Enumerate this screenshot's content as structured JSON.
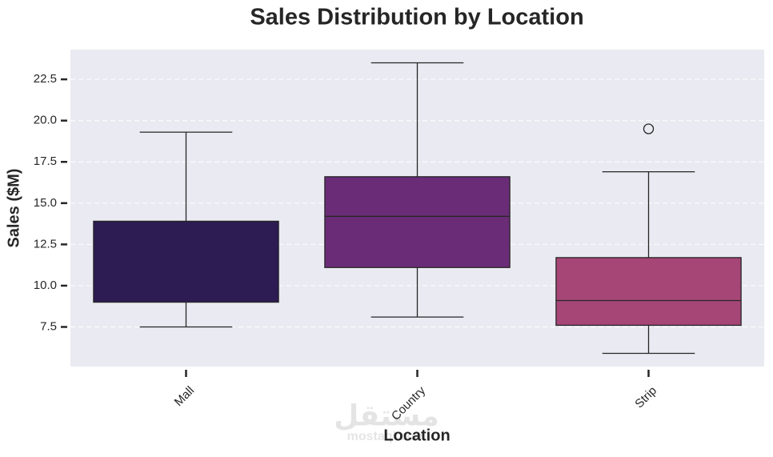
{
  "chart_data": {
    "type": "box",
    "title": "Sales Distribution by Location",
    "x_label": "Location",
    "y_label": "Sales ($M)",
    "categories": [
      "Mall",
      "Country",
      "Strip"
    ],
    "colors": [
      "#2d1b54",
      "#6a2c77",
      "#a64677"
    ],
    "boxes": [
      {
        "whislo": 7.5,
        "q1": 9.0,
        "med": 13.9,
        "q3": 13.9,
        "whishi": 19.3,
        "fliers": []
      },
      {
        "whislo": 8.1,
        "q1": 11.1,
        "med": 14.2,
        "q3": 16.6,
        "whishi": 23.5,
        "fliers": []
      },
      {
        "whislo": 5.9,
        "q1": 7.6,
        "med": 9.1,
        "q3": 11.7,
        "whishi": 16.9,
        "fliers": [
          19.5
        ]
      }
    ],
    "ylim": [
      5.1,
      24.3
    ],
    "yticks": [
      {
        "value": 7.5,
        "label": "7.5"
      },
      {
        "value": 10,
        "label": "10.0"
      },
      {
        "value": 12.5,
        "label": "12.5"
      },
      {
        "value": 15,
        "label": "15.0"
      },
      {
        "value": 17.5,
        "label": "17.5"
      },
      {
        "value": 20,
        "label": "20.0"
      },
      {
        "value": 22.5,
        "label": "22.5"
      }
    ],
    "grid": true,
    "watermark": [
      "مستقل",
      "mostaql.com"
    ]
  }
}
